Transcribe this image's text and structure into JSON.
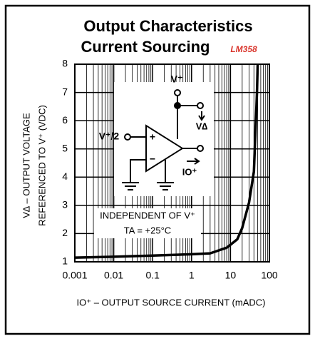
{
  "chart_data": {
    "type": "line",
    "title": "Output Characteristics",
    "subtitle": "Current Sourcing",
    "part_number": "LM358",
    "y_label": [
      "V∆ – OUTPUT VOLTAGE",
      "REFERENCED TO V⁺ (VDC)"
    ],
    "x_label": "IO⁺ – OUTPUT SOURCE CURRENT (mADC)",
    "annotations": [
      "INDEPENDENT OF V⁺",
      "TA = +25°C"
    ],
    "circuit_labels": [
      "V⁺",
      "V⁺/2",
      "V∆",
      "IO⁺",
      "+",
      "−"
    ],
    "x_scale": "log",
    "grid": true,
    "minor_grid": true,
    "xlim": [
      0.001,
      100
    ],
    "xticks": [
      0.001,
      0.01,
      0.1,
      1,
      10,
      100
    ],
    "ylim": [
      1,
      8
    ],
    "yticks": [
      1,
      2,
      3,
      4,
      5,
      6,
      7,
      8
    ],
    "series": [
      {
        "color": "#000000",
        "x": [
          0.001,
          0.01,
          0.1,
          1,
          3,
          8,
          15,
          20,
          30,
          40,
          48,
          50
        ],
        "values": [
          1.15,
          1.18,
          1.22,
          1.27,
          1.3,
          1.5,
          1.8,
          2.2,
          3.1,
          4.2,
          7,
          8
        ]
      }
    ]
  }
}
